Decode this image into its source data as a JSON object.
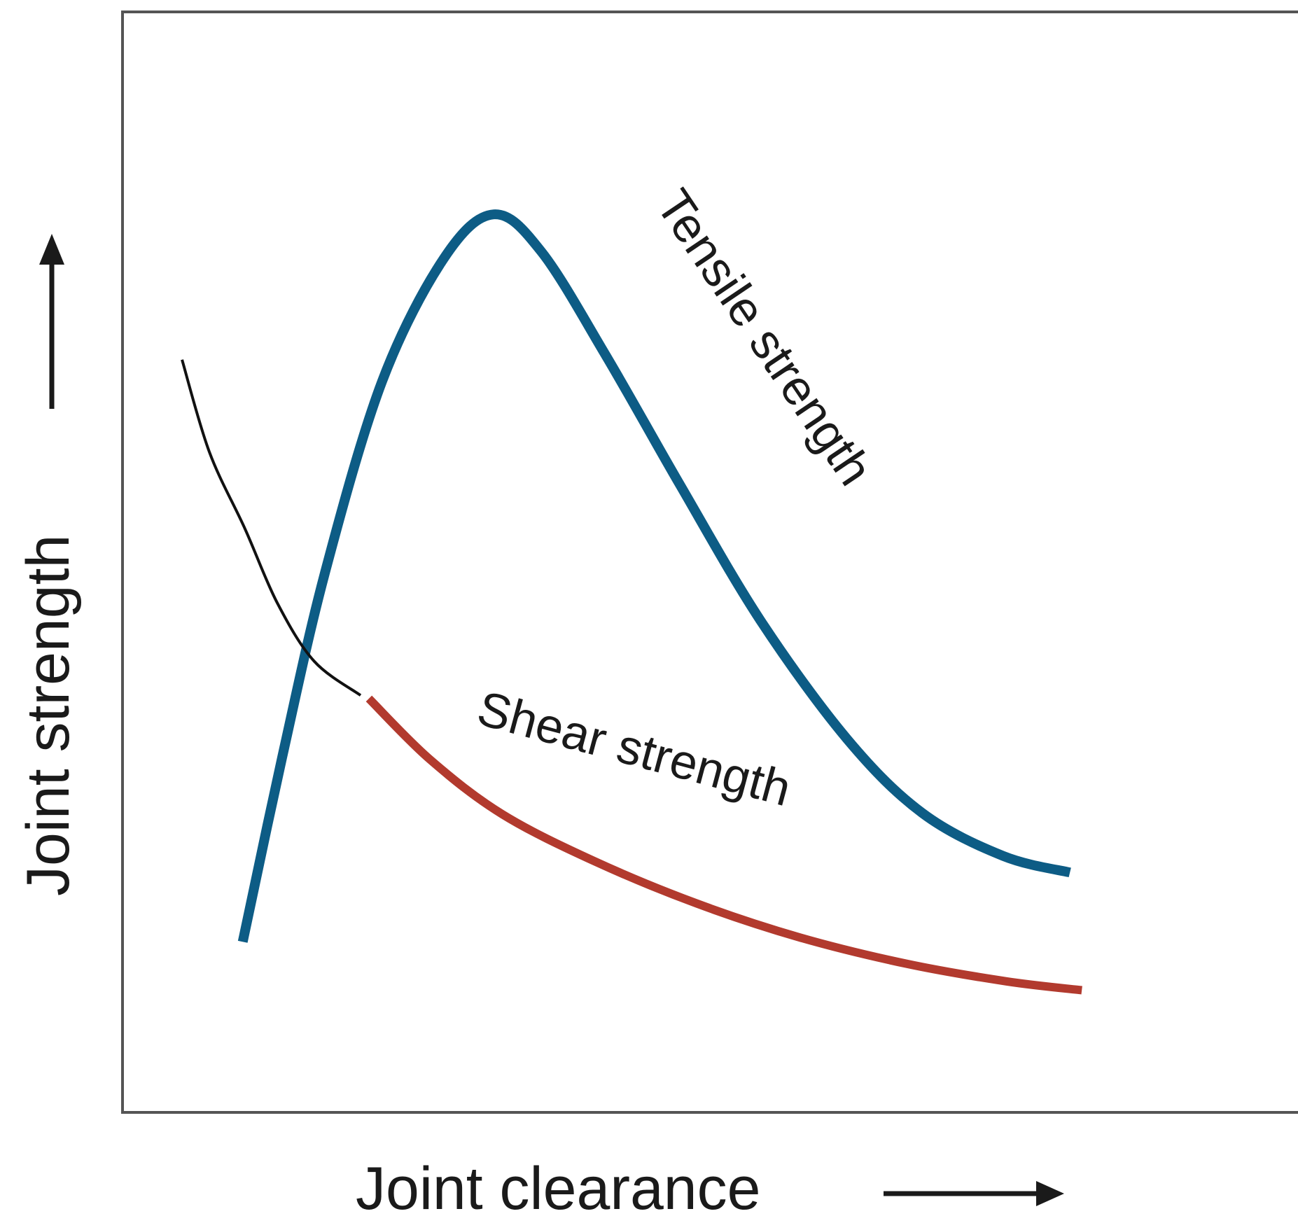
{
  "chart_data": {
    "type": "line",
    "title": "",
    "xlabel": "Joint clearance",
    "ylabel": "Joint strength",
    "xlim": [
      0,
      100
    ],
    "ylim": [
      0,
      100
    ],
    "grid": false,
    "ticks": false,
    "legend": "none",
    "series": [
      {
        "name": "Tensile strength",
        "color": "#0d5c85",
        "points": [
          {
            "x": 10.1,
            "y": 15.5
          },
          {
            "x": 13.4,
            "y": 32.2
          },
          {
            "x": 17.0,
            "y": 49.0
          },
          {
            "x": 21.8,
            "y": 66.4
          },
          {
            "x": 27.0,
            "y": 77.6
          },
          {
            "x": 31.2,
            "y": 81.6
          },
          {
            "x": 35.2,
            "y": 78.2
          },
          {
            "x": 40.6,
            "y": 68.8
          },
          {
            "x": 46.8,
            "y": 57.1
          },
          {
            "x": 53.6,
            "y": 44.7
          },
          {
            "x": 60.9,
            "y": 33.9
          },
          {
            "x": 67.2,
            "y": 27.2
          },
          {
            "x": 74.0,
            "y": 23.3
          },
          {
            "x": 79.6,
            "y": 21.8
          }
        ]
      },
      {
        "name": "Shear strength",
        "color": "#b23a2e",
        "segments": [
          {
            "style": "dashed-black",
            "color": "#111111",
            "points": [
              {
                "x": 5.0,
                "y": 68.4
              },
              {
                "x": 7.3,
                "y": 60.0
              },
              {
                "x": 10.3,
                "y": 53.0
              },
              {
                "x": 13.0,
                "y": 46.3
              },
              {
                "x": 16.1,
                "y": 41.0
              },
              {
                "x": 20.0,
                "y": 37.9
              }
            ]
          },
          {
            "style": "solid",
            "color": "#b23a2e",
            "points": [
              {
                "x": 20.7,
                "y": 37.6
              },
              {
                "x": 25.8,
                "y": 32.1
              },
              {
                "x": 31.9,
                "y": 27.1
              },
              {
                "x": 39.7,
                "y": 22.8
              },
              {
                "x": 48.2,
                "y": 19.0
              },
              {
                "x": 56.9,
                "y": 15.9
              },
              {
                "x": 65.9,
                "y": 13.5
              },
              {
                "x": 74.3,
                "y": 11.9
              },
              {
                "x": 80.6,
                "y": 11.1
              }
            ]
          }
        ]
      }
    ],
    "annotations": [
      {
        "text": "Tensile strength",
        "series": "Tensile strength"
      },
      {
        "text": "Shear strength",
        "series": "Shear strength"
      }
    ],
    "frame_color": "#555555"
  }
}
